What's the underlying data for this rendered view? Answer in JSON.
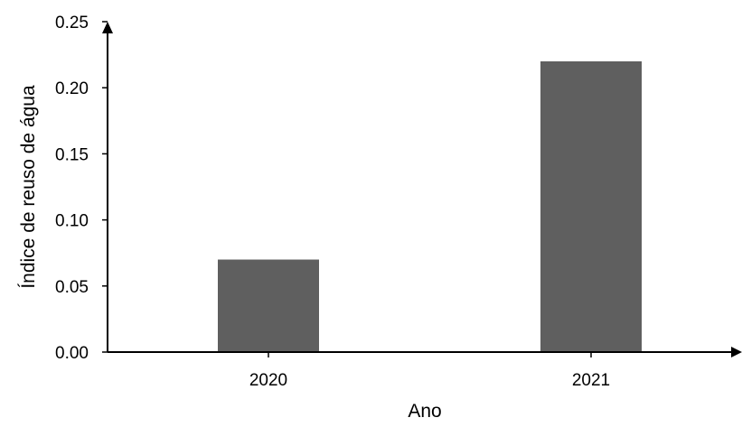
{
  "chart_data": {
    "type": "bar",
    "categories": [
      "2020",
      "2021"
    ],
    "values": [
      0.07,
      0.22
    ],
    "title": "",
    "xlabel": "Ano",
    "ylabel": "Índice de reuso de água",
    "ylim": [
      0,
      0.25
    ],
    "yticks": [
      "0.00",
      "0.05",
      "0.10",
      "0.15",
      "0.20",
      "0.25"
    ],
    "grid": false,
    "legend": "none",
    "bar_color": "#5f5f5f",
    "axis_color": "#000000"
  }
}
